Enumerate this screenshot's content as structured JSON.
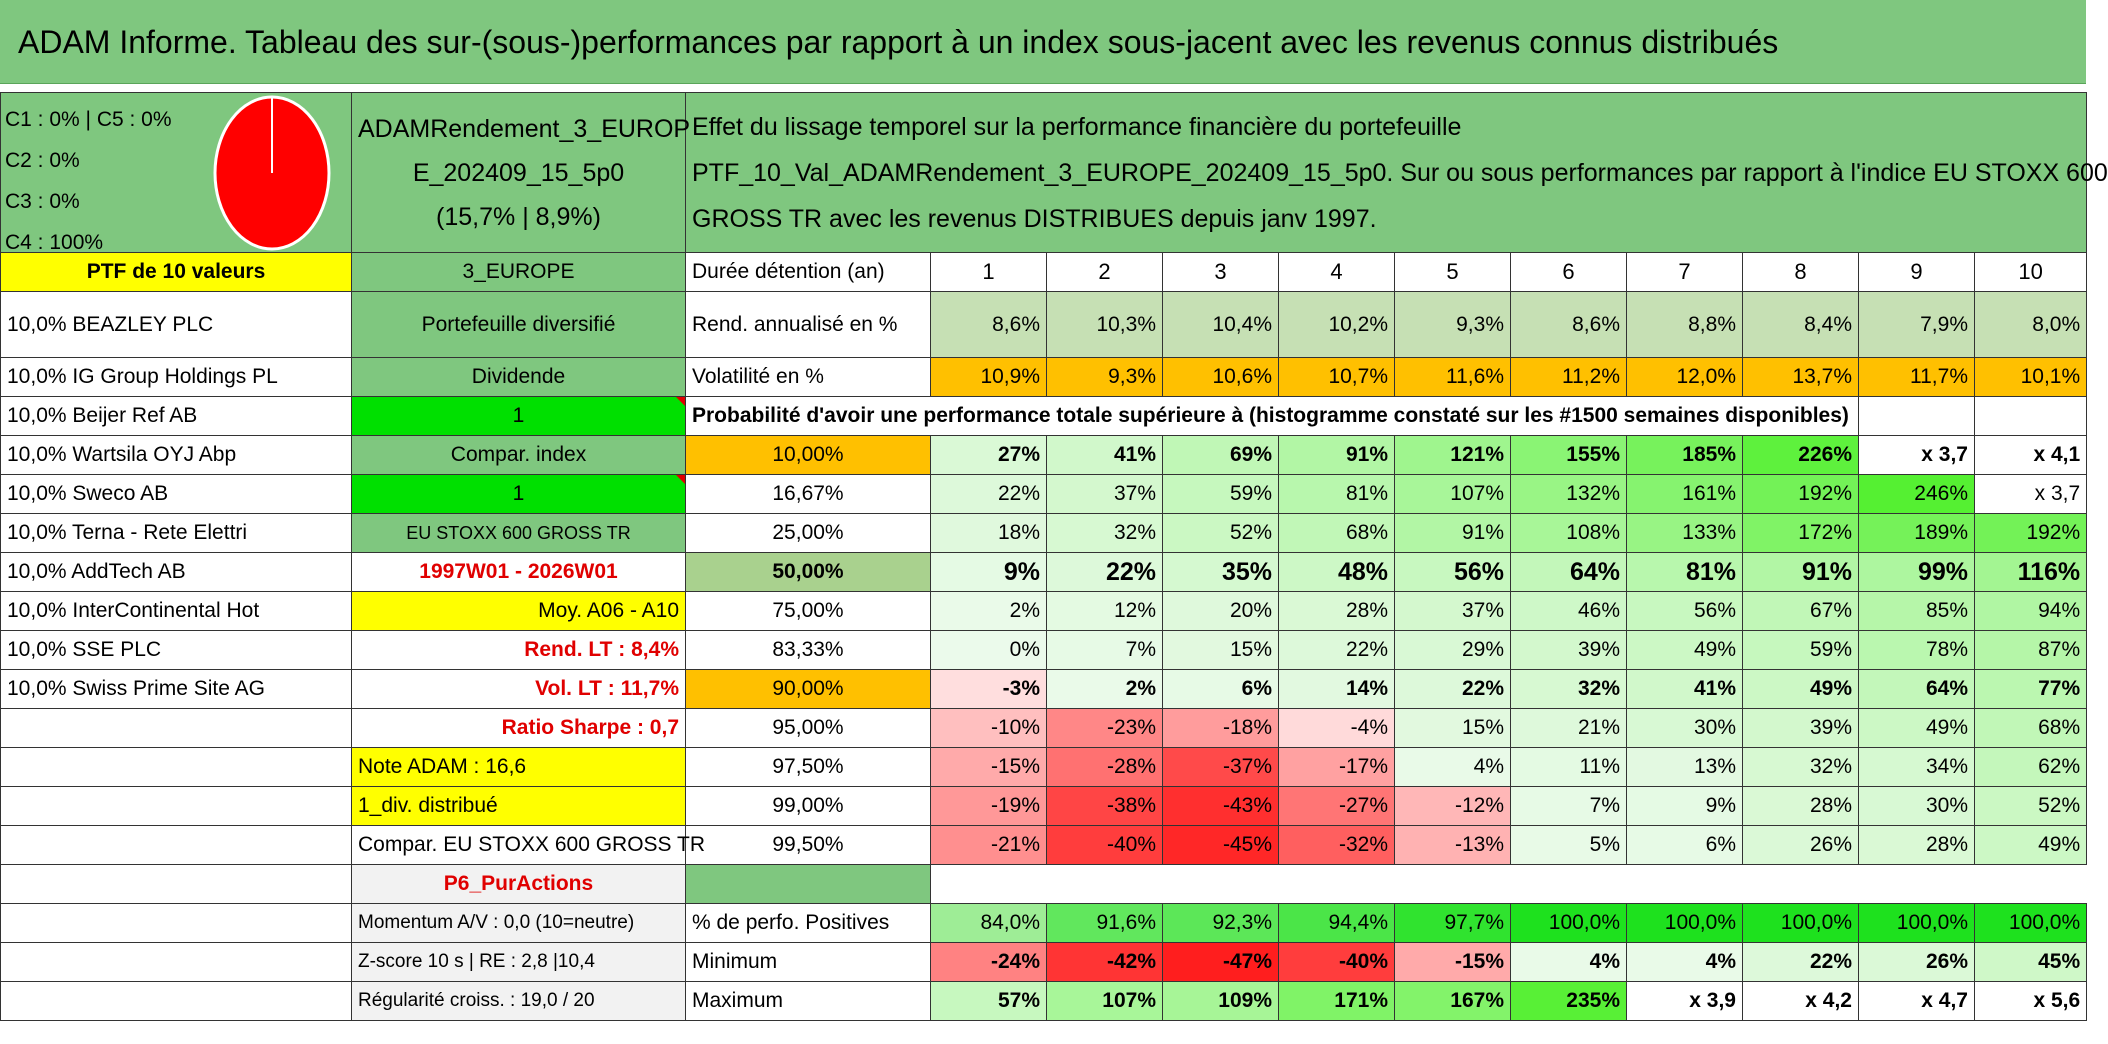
{
  "title": "ADAM Informe. Tableau des sur-(sous-)performances par rapport à un index sous-jacent avec les revenus connus distribués",
  "colors": {
    "header_green": "#7fc77f",
    "pie_fill": "#ff0000",
    "accent_red": "#e00000",
    "yellow": "#ffff00",
    "orange": "#ffc000"
  },
  "left": {
    "cluster_lines": [
      "C1 : 0% | C5 : 0%",
      "C2 : 0%",
      "C3 : 0%",
      "C4 : 100%"
    ],
    "ptf_label": "PTF de 10 valeurs",
    "holdings": [
      "10,0% BEAZLEY PLC",
      "10,0% IG Group Holdings PL",
      "10,0% Beijer Ref AB",
      "10,0% Wartsila OYJ Abp",
      "10,0% Sweco AB",
      "10,0% Terna - Rete Elettri",
      "10,0% AddTech AB",
      "10,0% InterContinental Hot",
      "10,0% SSE PLC",
      "10,0% Swiss Prime Site AG"
    ]
  },
  "middle": {
    "portfolio_name_lines": [
      "ADAMRendement_3_EUROP",
      "E_202409_15_5p0",
      "(15,7% | 8,9%)"
    ],
    "region": "3_EUROPE",
    "portfolio_type": "Portefeuille diversifié",
    "dividend_label": "Dividende",
    "dividend_value": "1",
    "compar_index_label": "Compar. index",
    "compar_index_value": "1",
    "index_name": "EU STOXX 600 GROSS TR",
    "period": "1997W01 - 2026W01",
    "moy": "Moy. A06 - A10",
    "rend_lt": "Rend. LT : 8,4%",
    "vol_lt": "Vol. LT : 11,7%",
    "sharpe": "Ratio Sharpe : 0,7",
    "note_adam": "Note ADAM : 16,6",
    "div_distribue": "1_div. distribué",
    "compar_index_full": "Compar. EU STOXX 600 GROSS TR",
    "pur_actions": "P6_PurActions",
    "momentum": "Momentum A/V : 0,0 (10=neutre)",
    "zscore": "Z-score 10 s | RE : 2,8 |10,4",
    "regularite": "Régularité croiss. : 19,0 / 20"
  },
  "main": {
    "effect_lines": [
      "Effet du lissage temporel sur la performance financière du portefeuille",
      "PTF_10_Val_ADAMRendement_3_EUROPE_202409_15_5p0. Sur ou sous performances par rapport à l'indice EU STOXX 600",
      "GROSS TR avec les revenus DISTRIBUES depuis janv 1997."
    ],
    "duration_label": "Durée détention (an)",
    "years": [
      "1",
      "2",
      "3",
      "4",
      "5",
      "6",
      "7",
      "8",
      "9",
      "10"
    ],
    "rend_label": "Rend. annualisé en %",
    "rend": [
      "8,6%",
      "10,3%",
      "10,4%",
      "10,2%",
      "9,3%",
      "8,6%",
      "8,8%",
      "8,4%",
      "7,9%",
      "8,0%"
    ],
    "vol_label": "Volatilité en %",
    "vol": [
      "10,9%",
      "9,3%",
      "10,6%",
      "10,7%",
      "11,6%",
      "11,2%",
      "12,0%",
      "13,7%",
      "11,7%",
      "10,1%"
    ],
    "prob_title": "Probabilité d'avoir une performance totale supérieure à (histogramme constaté sur les #1500 semaines disponibles)",
    "prob_rows": [
      {
        "pct": "10,00%",
        "vals": [
          "27%",
          "41%",
          "69%",
          "91%",
          "121%",
          "155%",
          "185%",
          "226%",
          "x 3,7",
          "x 4,1"
        ]
      },
      {
        "pct": "16,67%",
        "vals": [
          "22%",
          "37%",
          "59%",
          "81%",
          "107%",
          "132%",
          "161%",
          "192%",
          "246%",
          "x 3,7"
        ]
      },
      {
        "pct": "25,00%",
        "vals": [
          "18%",
          "32%",
          "52%",
          "68%",
          "91%",
          "108%",
          "133%",
          "172%",
          "189%",
          "192%"
        ]
      },
      {
        "pct": "50,00%",
        "vals": [
          "9%",
          "22%",
          "35%",
          "48%",
          "56%",
          "64%",
          "81%",
          "91%",
          "99%",
          "116%"
        ]
      },
      {
        "pct": "75,00%",
        "vals": [
          "2%",
          "12%",
          "20%",
          "28%",
          "37%",
          "46%",
          "56%",
          "67%",
          "85%",
          "94%"
        ]
      },
      {
        "pct": "83,33%",
        "vals": [
          "0%",
          "7%",
          "15%",
          "22%",
          "29%",
          "39%",
          "49%",
          "59%",
          "78%",
          "87%"
        ]
      },
      {
        "pct": "90,00%",
        "vals": [
          "-3%",
          "2%",
          "6%",
          "14%",
          "22%",
          "32%",
          "41%",
          "49%",
          "64%",
          "77%"
        ]
      },
      {
        "pct": "95,00%",
        "vals": [
          "-10%",
          "-23%",
          "-18%",
          "-4%",
          "15%",
          "21%",
          "30%",
          "39%",
          "49%",
          "68%"
        ]
      },
      {
        "pct": "97,50%",
        "vals": [
          "-15%",
          "-28%",
          "-37%",
          "-17%",
          "4%",
          "11%",
          "13%",
          "32%",
          "34%",
          "62%"
        ]
      },
      {
        "pct": "99,00%",
        "vals": [
          "-19%",
          "-38%",
          "-43%",
          "-27%",
          "-12%",
          "7%",
          "9%",
          "28%",
          "30%",
          "52%"
        ]
      },
      {
        "pct": "99,50%",
        "vals": [
          "-21%",
          "-40%",
          "-45%",
          "-32%",
          "-13%",
          "5%",
          "6%",
          "26%",
          "28%",
          "49%"
        ]
      }
    ],
    "pos_label": "% de perfo. Positives",
    "pos": [
      "84,0%",
      "91,6%",
      "92,3%",
      "94,4%",
      "97,7%",
      "100,0%",
      "100,0%",
      "100,0%",
      "100,0%",
      "100,0%"
    ],
    "min_label": "Minimum",
    "min": [
      "-24%",
      "-42%",
      "-47%",
      "-40%",
      "-15%",
      "4%",
      "4%",
      "22%",
      "26%",
      "45%"
    ],
    "max_label": "Maximum",
    "max": [
      "57%",
      "107%",
      "109%",
      "171%",
      "167%",
      "235%",
      "x 3,9",
      "x 4,2",
      "x 4,7",
      "x 5,6"
    ]
  }
}
